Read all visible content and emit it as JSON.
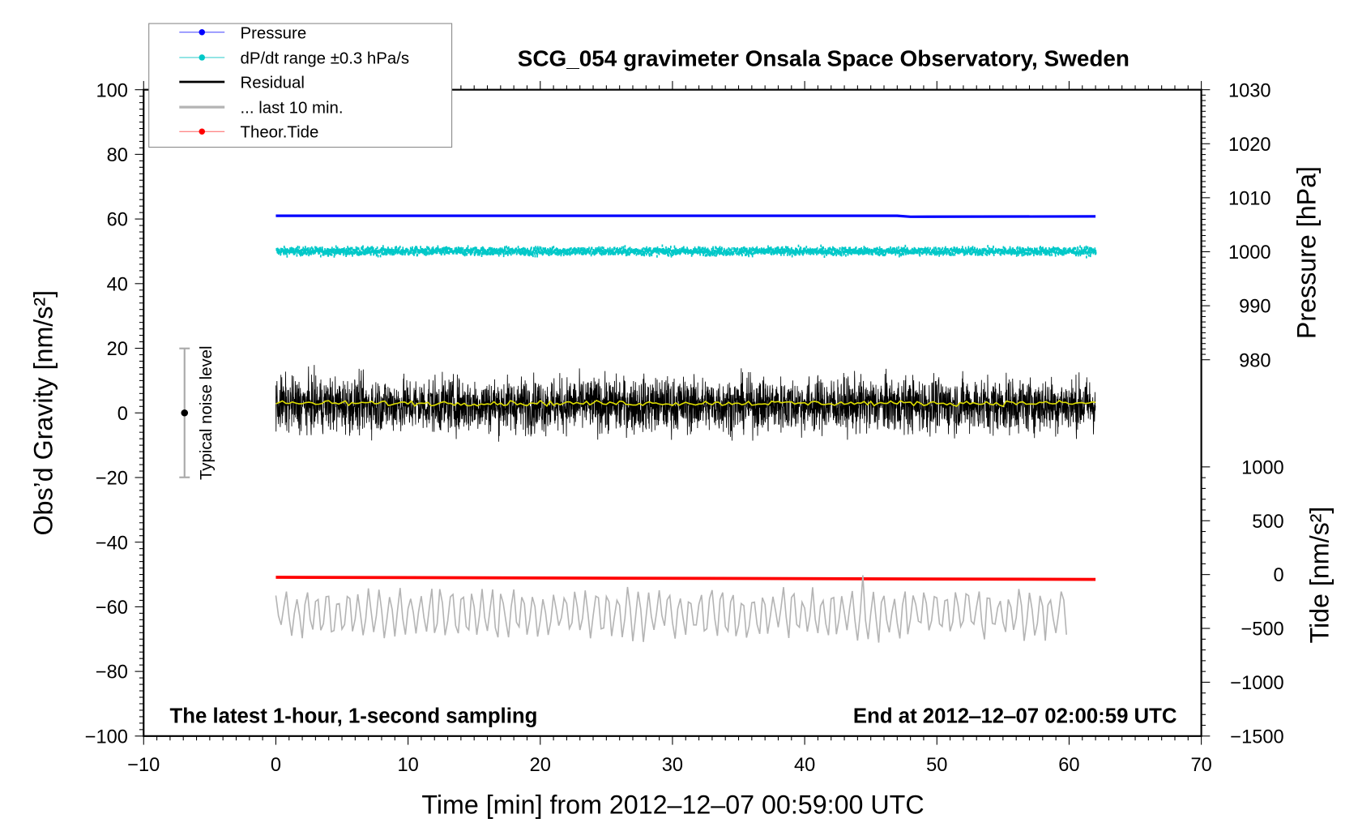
{
  "chart_data": {
    "type": "line",
    "title": "SCG_054 gravimeter Onsala Space Observatory, Sweden",
    "xlabel": "Time [min] from 2012‒12‒07 00:59:00 UTC",
    "ylabel": "Obs’d Gravity [nm/s²]",
    "y2label": "Pressure [hPa]",
    "y3label": "Tide [nm/s²]",
    "xlim": [
      -10,
      70
    ],
    "ylim": [
      -100,
      100
    ],
    "y2lim": [
      980,
      1030
    ],
    "y3lim": [
      -1500,
      1000
    ],
    "xticks": [
      "−10",
      "0",
      "10",
      "20",
      "30",
      "40",
      "50",
      "60",
      "70"
    ],
    "xtick_values": [
      -10,
      0,
      10,
      20,
      30,
      40,
      50,
      60,
      70
    ],
    "yticks": [
      "−100",
      "−80",
      "−60",
      "−40",
      "−20",
      "0",
      "20",
      "40",
      "60",
      "80",
      "100"
    ],
    "ytick_values": [
      -100,
      -80,
      -60,
      -40,
      -20,
      0,
      20,
      40,
      60,
      80,
      100
    ],
    "y2ticks": [
      "980",
      "990",
      "1000",
      "1010",
      "1020",
      "1030"
    ],
    "y2tick_values": [
      980,
      990,
      1000,
      1010,
      1020,
      1030
    ],
    "y3ticks": [
      "−1500",
      "−1000",
      "−500",
      "0",
      "500",
      "1000"
    ],
    "y3tick_values": [
      -1500,
      -1000,
      -500,
      0,
      500,
      1000
    ],
    "legend": {
      "position": "top-left",
      "entries": [
        "Pressure",
        "dP/dt range ±0.3 hPa/s",
        "Residual",
        "... last 10 min.",
        "Theor.Tide"
      ]
    },
    "annotations": {
      "left_note": "The latest 1‑hour, 1‑second sampling",
      "right_note": "End at 2012‒12‒07 02:00:59 UTC",
      "noise_label": "Typical noise level",
      "noise_range": [
        -20,
        20
      ]
    },
    "series": [
      {
        "name": "Pressure",
        "axis": "gravity-units",
        "color": "#0000ff",
        "x": [
          0,
          47,
          48,
          62
        ],
        "y": [
          61,
          61,
          60.7,
          60.8
        ]
      },
      {
        "name": "dP/dt range ±0.3 hPa/s",
        "axis": "gravity-units",
        "color": "#00c8c8",
        "x_range": [
          0,
          62
        ],
        "center": 50,
        "noise": 1.2
      },
      {
        "name": "Residual",
        "axis": "gravity-units",
        "color": "#000000",
        "x_range": [
          0,
          62
        ],
        "center": 2.5,
        "noise": 7
      },
      {
        "name": "Residual smoothed",
        "axis": "gravity-units",
        "color": "#dddd00",
        "x_range": [
          0,
          62
        ],
        "center": 3
      },
      {
        "name": "... last 10 min.",
        "axis": "gravity-units",
        "color": "#b4b4b4",
        "x_range": [
          0,
          60
        ],
        "center": -62,
        "noise": 7
      },
      {
        "name": "Theor.Tide",
        "axis": "tide",
        "color": "#ff0000",
        "x": [
          0,
          62
        ],
        "y": [
          -25,
          -45
        ]
      }
    ]
  }
}
